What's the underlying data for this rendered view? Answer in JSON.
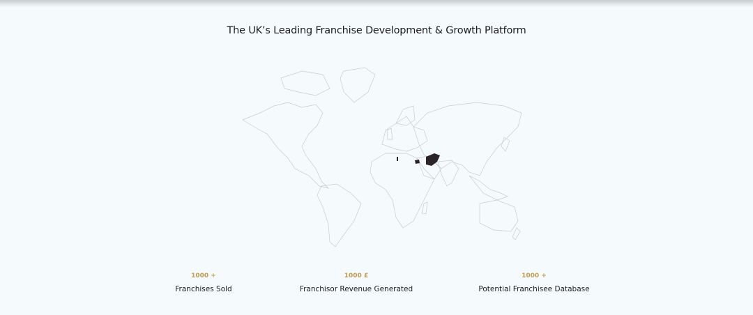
{
  "title": "The UK’s Leading Franchise Development & Growth Platform",
  "map": {
    "highlighted_color": "#2b2325",
    "outline_color": "#c8ccd0",
    "highlighted_countries": [
      "Afghanistan",
      "Azerbaijan",
      "Albania"
    ]
  },
  "stats": [
    {
      "value": "1000 +",
      "label": "Franchises Sold"
    },
    {
      "value": "1000 £",
      "label": "Franchisor Revenue Generated"
    },
    {
      "value": "1000 +",
      "label": "Potential Franchisee Database"
    }
  ],
  "accent_color": "#c79a4e"
}
